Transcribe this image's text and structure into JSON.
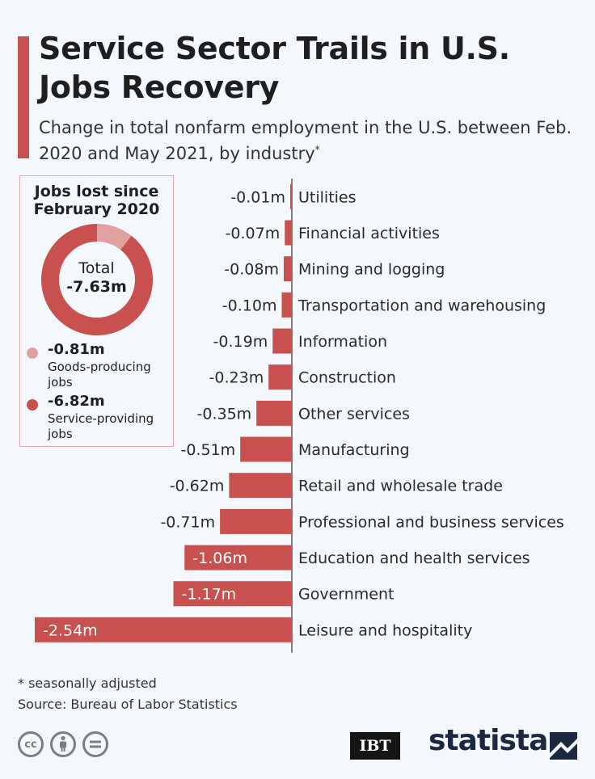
{
  "header": {
    "title": "Service Sector Trails in U.S. Jobs Recovery",
    "subtitle": "Change in total nonfarm employment in the U.S. between Feb. 2020 and May 2021, by industry",
    "subtitle_marker": "*"
  },
  "inset": {
    "title": "Jobs lost since February 2020",
    "total_label": "Total",
    "total_value": "-7.63m",
    "legend": [
      {
        "value": "-0.81m",
        "label": "Goods-producing jobs",
        "color": "#e0a0a0"
      },
      {
        "value": "-6.82m",
        "label": "Service-providing jobs",
        "color": "#c8504f"
      }
    ],
    "donut_values": [
      0.81,
      6.82
    ]
  },
  "chart_data": {
    "type": "bar",
    "orientation": "horizontal",
    "title": "Change in total nonfarm employment in the U.S. between Feb. 2020 and May 2021, by industry",
    "unit": "m",
    "bar_color": "#c8504f",
    "xlim": [
      -2.54,
      0
    ],
    "categories": [
      "Utilities",
      "Financial activities",
      "Mining and logging",
      "Transportation and warehousing",
      "Information",
      "Construction",
      "Other services",
      "Manufacturing",
      "Retail and wholesale trade",
      "Professional and business services",
      "Education and health services",
      "Government",
      "Leisure and hospitality"
    ],
    "values": [
      -0.01,
      -0.07,
      -0.08,
      -0.1,
      -0.19,
      -0.23,
      -0.35,
      -0.51,
      -0.62,
      -0.71,
      -1.06,
      -1.17,
      -2.54
    ],
    "labels": [
      "-0.01m",
      "-0.07m",
      "-0.08m",
      "-0.10m",
      "-0.19m",
      "-0.23m",
      "-0.35m",
      "-0.51m",
      "-0.62m",
      "-0.71m",
      "-1.06m",
      "-1.17m",
      "-2.54m"
    ]
  },
  "footer": {
    "footnote": "* seasonally adjusted",
    "source": "Source: Bureau of Labor Statistics",
    "partner_logo": "IBT",
    "brand": "statista",
    "license_icons": [
      "cc-icon",
      "attribution-icon",
      "no-derivatives-icon"
    ]
  }
}
